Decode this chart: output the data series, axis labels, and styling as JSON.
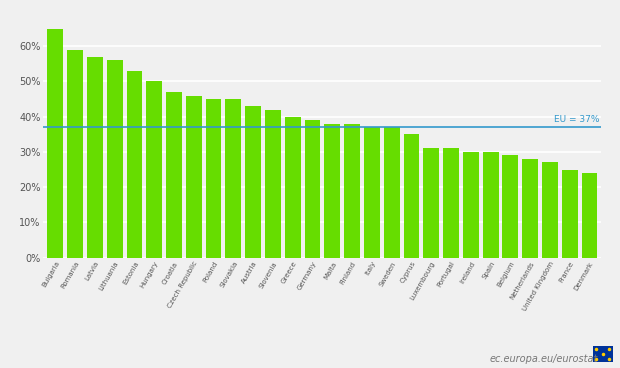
{
  "categories": [
    "Bulgaria",
    "Romania",
    "Latvia",
    "Lithuania",
    "Estonia",
    "Hungary",
    "Croatia",
    "Czech Republic",
    "Poland",
    "Slovakia",
    "Austria",
    "Slovenia",
    "Greece",
    "Germany",
    "Malta",
    "Finland",
    "Italy",
    "Sweden",
    "Cyprus",
    "Luxembourg",
    "Portugal",
    "Ireland",
    "Spain",
    "Belgium",
    "Netherlands",
    "United Kingdom",
    "France",
    "Denmark"
  ],
  "values": [
    65,
    59,
    57,
    56,
    53,
    50,
    47,
    46,
    45,
    45,
    43,
    42,
    40,
    39,
    38,
    38,
    37,
    37,
    35,
    31,
    31,
    30,
    30,
    29,
    28,
    27,
    25,
    24
  ],
  "bar_color": "#66dd00",
  "eu_line_value": 37,
  "eu_line_color": "#3399cc",
  "eu_line_label": "EU = 37%",
  "background_color": "#f0f0f0",
  "grid_color": "#ffffff",
  "yticks": [
    0,
    10,
    20,
    30,
    40,
    50,
    60
  ],
  "ytick_labels": [
    "0%",
    "10%",
    "20%",
    "30%",
    "40%",
    "50%",
    "60%"
  ],
  "ylim": [
    0,
    70
  ],
  "watermark": "ec.europa.eu/eurostat",
  "watermark_color": "#777777"
}
